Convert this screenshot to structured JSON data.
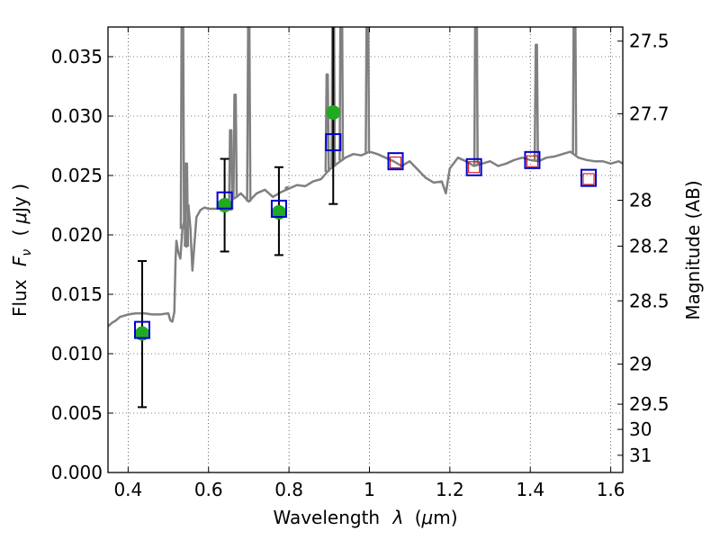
{
  "chart_data": {
    "type": "line",
    "title": "",
    "xlabel": "Wavelength",
    "xlabel_symbol": "λ",
    "xlabel_unit_prefix": "(",
    "xlabel_unit_mu": "μ",
    "xlabel_unit_suffix": "m)",
    "ylabel": "Flux",
    "ylabel_symbol": "F",
    "ylabel_subscript": "ν",
    "ylabel_unit_prefix": "(",
    "ylabel_unit_mu": "μ",
    "ylabel_unit_suffix": "Jy )",
    "y2label": "Magnitude (AB)",
    "xlim": [
      0.35,
      1.63
    ],
    "ylim": [
      0.0,
      0.0375
    ],
    "grid": true,
    "x_ticks": [
      0.4,
      0.6,
      0.8,
      1.0,
      1.2,
      1.4,
      1.6
    ],
    "x_tick_labels": [
      "0.4",
      "0.6",
      "0.8",
      "1",
      "1.2",
      "1.4",
      "1.6"
    ],
    "y_ticks": [
      0.0,
      0.005,
      0.01,
      0.015,
      0.02,
      0.025,
      0.03,
      0.035
    ],
    "y_tick_labels": [
      "0.000",
      "0.005",
      "0.010",
      "0.015",
      "0.020",
      "0.025",
      "0.030",
      "0.035"
    ],
    "y2_ticks": [
      {
        "label": "27.5",
        "flux": 0.03631
      },
      {
        "label": "27.7",
        "flux": 0.0302
      },
      {
        "label": "28",
        "flux": 0.02291
      },
      {
        "label": "28.2",
        "flux": 0.01905
      },
      {
        "label": "28.5",
        "flux": 0.01445
      },
      {
        "label": "29",
        "flux": 0.00912
      },
      {
        "label": "29.5",
        "flux": 0.00575
      },
      {
        "label": "30",
        "flux": 0.00363
      },
      {
        "label": "31",
        "flux": 0.00145
      }
    ],
    "series": [
      {
        "kind": "line",
        "color": "#808080",
        "x": [
          0.35,
          0.36,
          0.37,
          0.38,
          0.39,
          0.4,
          0.42,
          0.44,
          0.46,
          0.48,
          0.5,
          0.505,
          0.51,
          0.515,
          0.518,
          0.52,
          0.525,
          0.53,
          0.535,
          0.54,
          0.545,
          0.55,
          0.555,
          0.56,
          0.57,
          0.58,
          0.59,
          0.6,
          0.62,
          0.64,
          0.65,
          0.655,
          0.66,
          0.67,
          0.68,
          0.7,
          0.72,
          0.74,
          0.76,
          0.78,
          0.8,
          0.82,
          0.84,
          0.86,
          0.88,
          0.9,
          0.92,
          0.94,
          0.96,
          0.98,
          1.0,
          1.02,
          1.04,
          1.06,
          1.08,
          1.1,
          1.12,
          1.14,
          1.16,
          1.18,
          1.19,
          1.2,
          1.22,
          1.24,
          1.26,
          1.28,
          1.3,
          1.32,
          1.34,
          1.36,
          1.38,
          1.4,
          1.42,
          1.44,
          1.46,
          1.48,
          1.5,
          1.52,
          1.54,
          1.56,
          1.58,
          1.6,
          1.62,
          1.63
        ],
        "y": [
          0.0123,
          0.0126,
          0.0128,
          0.0131,
          0.0132,
          0.0133,
          0.0134,
          0.0134,
          0.0133,
          0.0133,
          0.0134,
          0.0128,
          0.0127,
          0.0135,
          0.018,
          0.0195,
          0.0185,
          0.018,
          0.0205,
          0.0212,
          0.019,
          0.0225,
          0.0205,
          0.017,
          0.0215,
          0.0221,
          0.0223,
          0.0222,
          0.0222,
          0.0225,
          0.0224,
          0.0221,
          0.023,
          0.0232,
          0.0235,
          0.0228,
          0.0235,
          0.0238,
          0.0232,
          0.0236,
          0.0239,
          0.0242,
          0.0241,
          0.0245,
          0.0247,
          0.0255,
          0.026,
          0.0265,
          0.0268,
          0.0267,
          0.027,
          0.0268,
          0.0265,
          0.0262,
          0.0258,
          0.0262,
          0.0255,
          0.0248,
          0.0244,
          0.0245,
          0.0235,
          0.0256,
          0.0265,
          0.0262,
          0.0258,
          0.026,
          0.0262,
          0.0258,
          0.026,
          0.0263,
          0.0265,
          0.0263,
          0.0262,
          0.0265,
          0.0266,
          0.0268,
          0.027,
          0.0265,
          0.0263,
          0.0262,
          0.0262,
          0.026,
          0.0262,
          0.026
        ]
      },
      {
        "kind": "emission_lines",
        "color": "#808080",
        "lines": [
          {
            "x": 0.535,
            "peak": 0.042
          },
          {
            "x": 0.545,
            "peak": 0.026
          },
          {
            "x": 0.655,
            "peak": 0.0288
          },
          {
            "x": 0.666,
            "peak": 0.0318
          },
          {
            "x": 0.7,
            "peak": 0.0375
          },
          {
            "x": 0.795,
            "peak": 0.024
          },
          {
            "x": 0.895,
            "peak": 0.0335
          },
          {
            "x": 0.91,
            "peak": 0.042
          },
          {
            "x": 0.93,
            "peak": 0.042
          },
          {
            "x": 0.995,
            "peak": 0.042
          },
          {
            "x": 1.265,
            "peak": 0.042
          },
          {
            "x": 1.415,
            "peak": 0.036
          },
          {
            "x": 1.51,
            "peak": 0.042
          }
        ]
      },
      {
        "kind": "errorbar",
        "color": "#000000",
        "points": [
          {
            "x": 0.435,
            "lo": 0.0055,
            "hi": 0.0178
          },
          {
            "x": 0.64,
            "lo": 0.0186,
            "hi": 0.0264
          },
          {
            "x": 0.775,
            "lo": 0.0183,
            "hi": 0.0257
          },
          {
            "x": 0.91,
            "lo": 0.0226,
            "hi": 0.042
          }
        ]
      },
      {
        "kind": "markers-circle",
        "color": "#22aa22",
        "x": [
          0.435,
          0.64,
          0.775,
          0.91
        ],
        "y": [
          0.0117,
          0.0225,
          0.0219,
          0.0303
        ]
      },
      {
        "kind": "markers-square",
        "color": "#0000cc",
        "x": [
          0.435,
          0.64,
          0.775,
          0.91,
          1.065,
          1.26,
          1.405,
          1.545
        ],
        "y": [
          0.012,
          0.0229,
          0.0222,
          0.0278,
          0.0262,
          0.0257,
          0.0263,
          0.0248
        ]
      },
      {
        "kind": "markers-square-small",
        "color": "#cc0000",
        "x": [
          1.065,
          1.26,
          1.405,
          1.545
        ],
        "y": [
          0.0261,
          0.0257,
          0.0262,
          0.0247
        ]
      }
    ]
  }
}
